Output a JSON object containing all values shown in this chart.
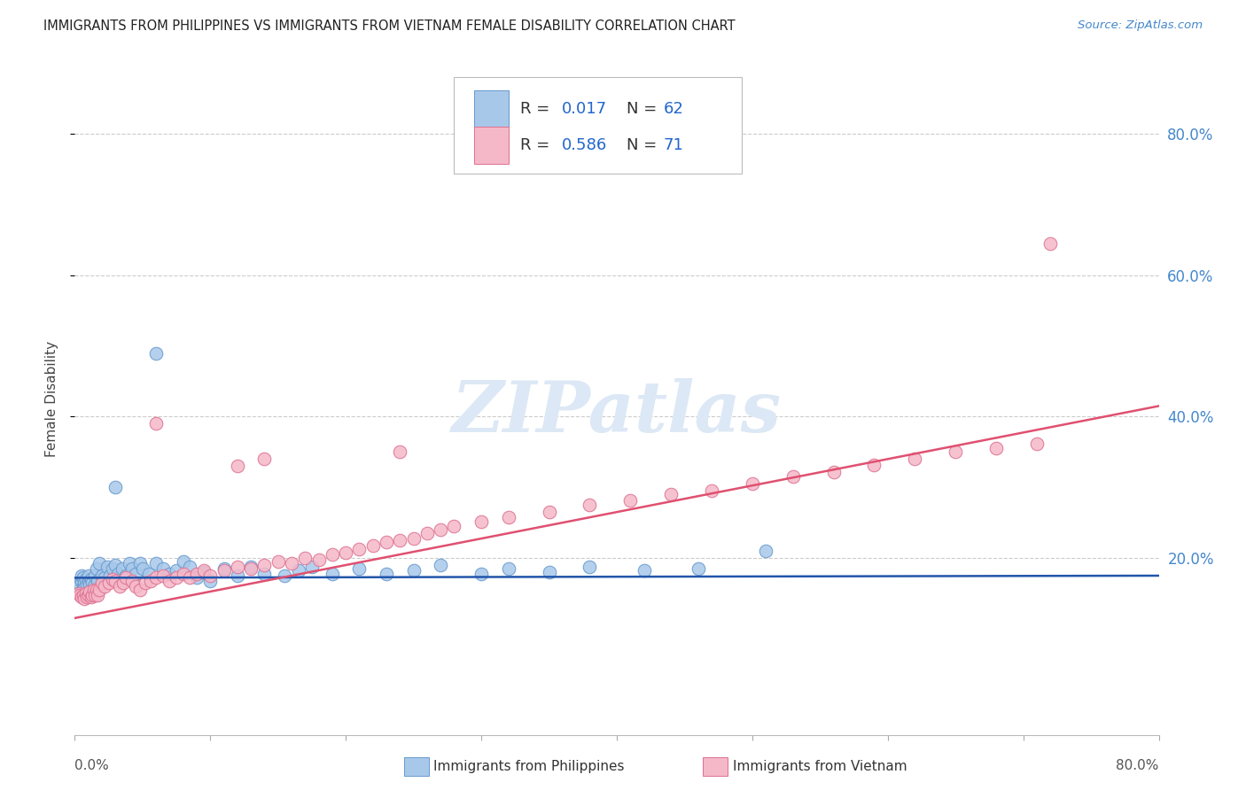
{
  "title": "IMMIGRANTS FROM PHILIPPINES VS IMMIGRANTS FROM VIETNAM FEMALE DISABILITY CORRELATION CHART",
  "source": "Source: ZipAtlas.com",
  "ylabel": "Female Disability",
  "y_tick_values": [
    0.2,
    0.4,
    0.6,
    0.8
  ],
  "x_range": [
    0.0,
    0.8
  ],
  "y_range": [
    -0.05,
    0.9
  ],
  "phil_color": "#a8c8ea",
  "phil_edge_color": "#6699cc",
  "phil_line_color": "#2255aa",
  "viet_color": "#f5b8c8",
  "viet_edge_color": "#dd7090",
  "viet_line_color": "#e05070",
  "background_color": "#ffffff",
  "grid_color": "#cccccc",
  "watermark_text": "ZIPatlas",
  "watermark_color": "#dce8f5",
  "series_philippines": {
    "x": [
      0.003,
      0.004,
      0.005,
      0.005,
      0.006,
      0.006,
      0.007,
      0.007,
      0.008,
      0.009,
      0.01,
      0.01,
      0.011,
      0.012,
      0.013,
      0.014,
      0.015,
      0.016,
      0.017,
      0.018,
      0.02,
      0.022,
      0.024,
      0.026,
      0.028,
      0.03,
      0.032,
      0.035,
      0.038,
      0.04,
      0.042,
      0.045,
      0.048,
      0.05,
      0.055,
      0.06,
      0.065,
      0.07,
      0.075,
      0.08,
      0.085,
      0.09,
      0.095,
      0.1,
      0.11,
      0.12,
      0.13,
      0.14,
      0.155,
      0.165,
      0.175,
      0.19,
      0.21,
      0.23,
      0.25,
      0.27,
      0.3,
      0.32,
      0.35,
      0.38,
      0.42,
      0.46
    ],
    "y": [
      0.165,
      0.162,
      0.168,
      0.175,
      0.16,
      0.172,
      0.165,
      0.158,
      0.17,
      0.163,
      0.168,
      0.175,
      0.162,
      0.17,
      0.165,
      0.16,
      0.175,
      0.185,
      0.168,
      0.192,
      0.175,
      0.172,
      0.188,
      0.175,
      0.185,
      0.19,
      0.178,
      0.185,
      0.175,
      0.192,
      0.185,
      0.178,
      0.192,
      0.185,
      0.178,
      0.192,
      0.185,
      0.178,
      0.182,
      0.195,
      0.188,
      0.172,
      0.18,
      0.168,
      0.185,
      0.175,
      0.188,
      0.178,
      0.175,
      0.182,
      0.188,
      0.178,
      0.185,
      0.178,
      0.182,
      0.19,
      0.178,
      0.185,
      0.18,
      0.188,
      0.182,
      0.185
    ]
  },
  "series_vietnam": {
    "x": [
      0.003,
      0.004,
      0.005,
      0.006,
      0.007,
      0.008,
      0.009,
      0.01,
      0.011,
      0.012,
      0.013,
      0.014,
      0.015,
      0.016,
      0.017,
      0.018,
      0.02,
      0.022,
      0.025,
      0.028,
      0.03,
      0.033,
      0.036,
      0.038,
      0.042,
      0.045,
      0.048,
      0.052,
      0.056,
      0.06,
      0.065,
      0.07,
      0.075,
      0.08,
      0.085,
      0.09,
      0.095,
      0.1,
      0.11,
      0.12,
      0.13,
      0.14,
      0.15,
      0.16,
      0.17,
      0.18,
      0.19,
      0.2,
      0.21,
      0.22,
      0.23,
      0.24,
      0.25,
      0.26,
      0.27,
      0.28,
      0.3,
      0.32,
      0.35,
      0.38,
      0.41,
      0.44,
      0.47,
      0.5,
      0.53,
      0.56,
      0.59,
      0.62,
      0.65,
      0.68,
      0.71
    ],
    "y": [
      0.15,
      0.148,
      0.145,
      0.148,
      0.142,
      0.15,
      0.145,
      0.148,
      0.152,
      0.145,
      0.148,
      0.155,
      0.148,
      0.155,
      0.148,
      0.155,
      0.165,
      0.16,
      0.165,
      0.17,
      0.168,
      0.16,
      0.165,
      0.172,
      0.168,
      0.16,
      0.155,
      0.165,
      0.168,
      0.172,
      0.175,
      0.168,
      0.172,
      0.178,
      0.172,
      0.178,
      0.182,
      0.175,
      0.182,
      0.188,
      0.185,
      0.19,
      0.195,
      0.192,
      0.2,
      0.198,
      0.205,
      0.208,
      0.212,
      0.218,
      0.222,
      0.225,
      0.228,
      0.235,
      0.24,
      0.245,
      0.252,
      0.258,
      0.265,
      0.275,
      0.282,
      0.29,
      0.295,
      0.305,
      0.315,
      0.322,
      0.332,
      0.34,
      0.35,
      0.355,
      0.362
    ]
  },
  "outlier_phil": {
    "x": [
      0.06,
      0.03,
      0.51
    ],
    "y": [
      0.49,
      0.3,
      0.21
    ]
  },
  "outlier_viet": {
    "x": [
      0.72,
      0.14,
      0.06,
      0.12,
      0.24
    ],
    "y": [
      0.645,
      0.34,
      0.39,
      0.33,
      0.35
    ]
  },
  "phil_trend_y0": 0.172,
  "phil_trend_y1": 0.175,
  "viet_trend_y0": 0.115,
  "viet_trend_y1": 0.415
}
